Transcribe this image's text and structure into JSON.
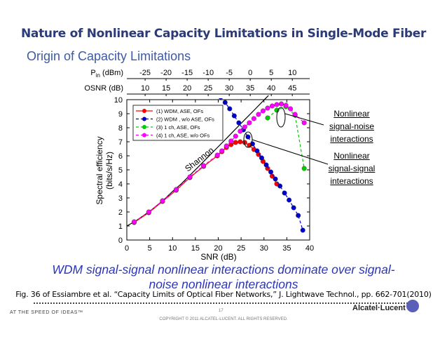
{
  "title": "Nature of Nonlinear Capacity Limitations in Single-Mode Fiber",
  "subtitle": "Origin of Capacity Limitations",
  "annotations": [
    {
      "lines": [
        "Nonlinear",
        "signal-noise",
        "interactions"
      ]
    },
    {
      "lines": [
        "Nonlinear",
        "signal-signal",
        "interactions"
      ]
    }
  ],
  "takeaway_line1": "WDM signal-signal nonlinear interactions dominate over signal-",
  "takeaway_line2": "noise nonlinear interactions",
  "caption": "Fig. 36 of Essiambre et al. “Capacity Limits of Optical Fiber Networks,” J. Lightwave Technol., pp. 662-701(2010)",
  "footer": {
    "tagline": "AT THE SPEED OF IDEAS™",
    "page_number": "17",
    "brand": "Alcatel·Lucent",
    "copyright": "COPYRIGHT © 2011 ALCATEL-LUCENT.  ALL RIGHTS RESERVED."
  },
  "colors": {
    "title": "#2b3a78",
    "subtitle": "#3d5aa8",
    "takeaway": "#2a35b8",
    "series1": "#ff0000",
    "series2": "#0000cc",
    "series3": "#00cc00",
    "series4": "#ff00ff"
  },
  "chart_data": {
    "type": "line",
    "xlabel": "SNR (dB)",
    "ylabel_line1": "Spectral efficiency",
    "ylabel_line2": "(bits/s/Hz)",
    "xlim": [
      0,
      40
    ],
    "ylim": [
      0,
      10
    ],
    "xticks": [
      "0",
      "5",
      "10",
      "15",
      "20",
      "25",
      "30",
      "35",
      "40"
    ],
    "yticks": [
      "0",
      "1",
      "2",
      "3",
      "4",
      "5",
      "6",
      "7",
      "8",
      "9",
      "10"
    ],
    "top_axes": [
      {
        "label": "Pin (dBm)",
        "label_main": "P",
        "label_sub": "in",
        "label_rest": " (dBm)",
        "ticks": [
          "-25",
          "-20",
          "-15",
          "-10",
          "-5",
          "0",
          "5",
          "10"
        ],
        "snr_positions": [
          4,
          8.6,
          13.2,
          17.8,
          22.4,
          27,
          31.6,
          36.2
        ]
      },
      {
        "label": "OSNR (dB)",
        "ticks": [
          "10",
          "15",
          "20",
          "25",
          "30",
          "35",
          "40",
          "45"
        ],
        "snr_positions": [
          4,
          8.6,
          13.2,
          17.8,
          22.4,
          27,
          31.6,
          36.2
        ]
      }
    ],
    "shannon_label": "Shannon",
    "series": [
      {
        "name": "(1) WDM, ASE, OFs",
        "style": "solid",
        "color": "#ff0000",
        "x": [
          1.6,
          4.8,
          7.8,
          10.8,
          13.8,
          16.8,
          19.8,
          20.8,
          21.8,
          22.8,
          23.8,
          24.8,
          25.8,
          26.8,
          27.8,
          28.8,
          29.8,
          30.8,
          31.8,
          32.8
        ],
        "y": [
          1.25,
          1.95,
          2.75,
          3.55,
          4.45,
          5.25,
          6.0,
          6.3,
          6.6,
          6.8,
          6.95,
          7.0,
          6.95,
          6.75,
          6.45,
          6.1,
          5.6,
          5.1,
          4.55,
          4.0
        ]
      },
      {
        "name": "(2) WDM , w/o ASE, OFs",
        "style": "dashed",
        "color": "#0000cc",
        "x": [
          20.5,
          21.5,
          22.5,
          23.5,
          24.5,
          25.5,
          26.5,
          27.5,
          28.5,
          29.5,
          30.5,
          31.5,
          32.5,
          33.5,
          34.5,
          35.5,
          36.5,
          37.5,
          38.5
        ],
        "y": [
          10.2,
          9.8,
          9.35,
          8.85,
          8.35,
          7.85,
          7.35,
          6.85,
          6.35,
          5.85,
          5.35,
          4.85,
          4.35,
          3.85,
          3.35,
          2.85,
          2.3,
          1.75,
          0.7
        ]
      },
      {
        "name": "(3) 1 ch, ASE, OFs",
        "style": "dashed",
        "color": "#00cc00",
        "x": [
          30.8,
          32.8,
          34.8,
          36.8,
          38.8
        ],
        "y": [
          8.7,
          9.25,
          9.5,
          8.9,
          5.1
        ]
      },
      {
        "name": "(4) 1 ch, ASE, w/o OFs",
        "style": "dashed",
        "color": "#ff00ff",
        "x": [
          1.6,
          4.8,
          7.8,
          10.8,
          13.8,
          16.8,
          19.8,
          20.8,
          21.8,
          22.8,
          23.8,
          24.8,
          25.8,
          26.8,
          27.8,
          28.8,
          29.8,
          30.8,
          31.8,
          32.8,
          33.8,
          34.8,
          35.8,
          36.8,
          38.8
        ],
        "y": [
          1.3,
          2.0,
          2.8,
          3.6,
          4.5,
          5.3,
          6.05,
          6.35,
          6.7,
          7.05,
          7.4,
          7.75,
          8.05,
          8.35,
          8.65,
          8.95,
          9.2,
          9.4,
          9.55,
          9.65,
          9.7,
          9.6,
          9.35,
          8.95,
          8.35
        ]
      }
    ],
    "shannon": {
      "x": [
        0,
        2,
        4,
        6,
        8,
        10,
        12,
        14,
        16,
        18,
        20,
        22,
        24,
        26,
        28,
        30,
        31
      ],
      "y": [
        1.0,
        1.37,
        1.82,
        2.3,
        2.84,
        3.46,
        4.03,
        4.68,
        5.33,
        5.99,
        6.65,
        7.31,
        7.98,
        8.64,
        9.3,
        9.97,
        10.3
      ]
    },
    "legend_location": "top-left"
  }
}
